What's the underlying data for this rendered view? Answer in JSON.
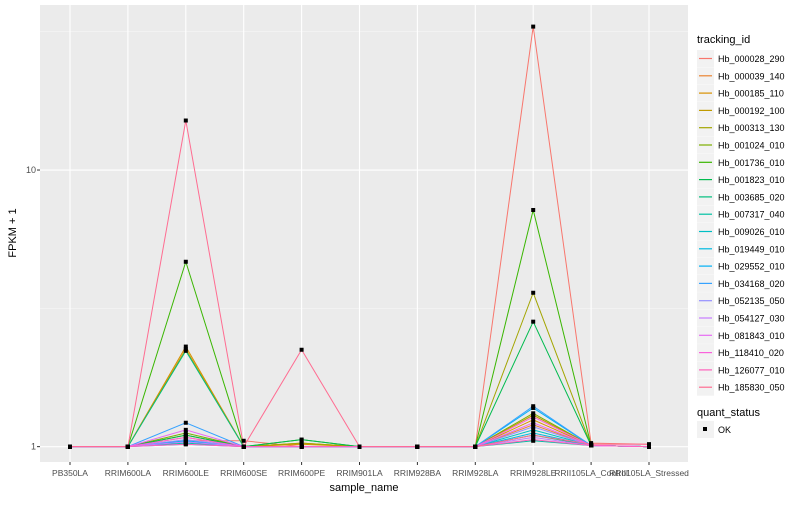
{
  "chart_data": {
    "type": "line",
    "xlabel": "sample_name",
    "ylabel": "FPKM + 1",
    "yscale": "log10",
    "ylim": [
      0.88,
      39.5
    ],
    "yticks": [
      1,
      10
    ],
    "ytick_labels": [
      "1-",
      "10-"
    ],
    "categories": [
      "PB350LA",
      "RRIM600LA",
      "RRIM600LE",
      "RRIM600SE",
      "RRIM600PE",
      "RRIM901LA",
      "RRIM928BA",
      "RRIM928LA",
      "RRIM928LE",
      "RRII105LA_Control",
      "RRII105LA_Stressed"
    ],
    "legend_title": "tracking_id",
    "legend_position": "right",
    "shape_legend_title": "quant_status",
    "shape_legend_label": "OK",
    "series": [
      {
        "name": "Hb_000028_290",
        "color": "#F8766D",
        "values": [
          1,
          1,
          1.05,
          1.05,
          1,
          1,
          1,
          1,
          33,
          1.03,
          1.02
        ]
      },
      {
        "name": "Hb_000039_140",
        "color": "#EA8331",
        "values": [
          1,
          1,
          1.08,
          1,
          1,
          1,
          1,
          1,
          1.2,
          1.01,
          1
        ]
      },
      {
        "name": "Hb_000185_110",
        "color": "#D89000",
        "values": [
          1,
          1,
          2.3,
          1,
          1.02,
          1,
          1,
          1,
          1.25,
          1.01,
          1
        ]
      },
      {
        "name": "Hb_000192_100",
        "color": "#C09B00",
        "values": [
          1,
          1,
          2.25,
          1,
          1.03,
          1,
          1,
          1,
          1.3,
          1.01,
          1
        ]
      },
      {
        "name": "Hb_000313_130",
        "color": "#A3A500",
        "values": [
          1,
          1,
          1.1,
          1,
          1.03,
          1,
          1,
          1,
          3.6,
          1.01,
          1
        ]
      },
      {
        "name": "Hb_001024_010",
        "color": "#7CAE00",
        "values": [
          1,
          1,
          1.12,
          1,
          1,
          1,
          1,
          1,
          1.32,
          1.01,
          1
        ]
      },
      {
        "name": "Hb_001736_010",
        "color": "#39B600",
        "values": [
          1,
          1,
          4.66,
          1,
          1.06,
          1,
          1,
          1,
          7.17,
          1.01,
          1
        ]
      },
      {
        "name": "Hb_001823_010",
        "color": "#00BB4E",
        "values": [
          1,
          1,
          1.1,
          1,
          1.06,
          1,
          1,
          1,
          2.83,
          1.01,
          1
        ]
      },
      {
        "name": "Hb_003685_020",
        "color": "#00BF7D",
        "values": [
          1,
          1,
          2.22,
          1,
          1,
          1,
          1,
          1,
          1.1,
          1.01,
          1
        ]
      },
      {
        "name": "Hb_007317_040",
        "color": "#00C1A3",
        "values": [
          1,
          1,
          1.03,
          1,
          1,
          1,
          1,
          1,
          1.05,
          1.01,
          1
        ]
      },
      {
        "name": "Hb_009026_010",
        "color": "#00BFC4",
        "values": [
          1,
          1,
          1.04,
          1,
          1,
          1,
          1,
          1,
          1.15,
          1.01,
          1
        ]
      },
      {
        "name": "Hb_019449_010",
        "color": "#00BAE0",
        "values": [
          1,
          1,
          1.02,
          1,
          1,
          1,
          1,
          1,
          1.12,
          1.01,
          1
        ]
      },
      {
        "name": "Hb_029552_010",
        "color": "#00B0F6",
        "values": [
          1,
          1,
          1.05,
          1,
          1,
          1,
          1,
          1,
          1.38,
          1.01,
          1
        ]
      },
      {
        "name": "Hb_034168_020",
        "color": "#35A2FF",
        "values": [
          1,
          1,
          1.22,
          1,
          1,
          1,
          1,
          1,
          1.4,
          1.01,
          1
        ]
      },
      {
        "name": "Hb_052135_050",
        "color": "#9590FF",
        "values": [
          1,
          1,
          1.06,
          1,
          1,
          1,
          1,
          1,
          1.18,
          1.01,
          1
        ]
      },
      {
        "name": "Hb_054127_030",
        "color": "#C77CFF",
        "values": [
          1,
          1,
          1.04,
          1,
          1,
          1,
          1,
          1,
          1.08,
          1.01,
          1
        ]
      },
      {
        "name": "Hb_081843_010",
        "color": "#E76BF3",
        "values": [
          1,
          1,
          1.15,
          1,
          1,
          1,
          1,
          1,
          1.22,
          1.01,
          1
        ]
      },
      {
        "name": "Hb_118410_020",
        "color": "#FA62DB",
        "values": [
          1,
          1,
          1.08,
          1,
          1,
          1,
          1,
          1,
          1.28,
          1.01,
          1
        ]
      },
      {
        "name": "Hb_126077_010",
        "color": "#FF62BC",
        "values": [
          1,
          1,
          1.02,
          1,
          1,
          1,
          1,
          1,
          1.06,
          1.01,
          1
        ]
      },
      {
        "name": "Hb_185830_050",
        "color": "#FF6C91",
        "values": [
          1,
          1,
          15.1,
          1,
          2.24,
          1,
          1,
          1,
          1.1,
          1.02,
          1.02
        ]
      }
    ]
  }
}
